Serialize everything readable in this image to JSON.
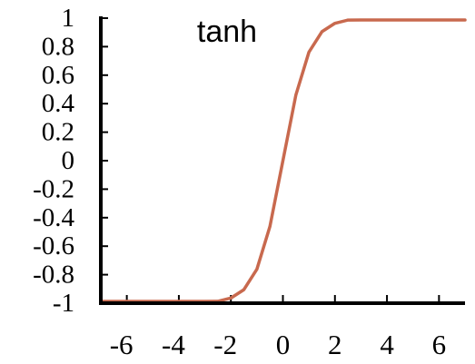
{
  "chart_data": {
    "type": "line",
    "title": "tanh",
    "xlabel": "",
    "ylabel": "",
    "xlim": [
      -7,
      7
    ],
    "ylim": [
      -1,
      1
    ],
    "x_ticks": [
      "-6",
      "-4",
      "-2",
      "0",
      "2",
      "4",
      "6"
    ],
    "y_ticks": [
      "1",
      "0.8",
      "0.6",
      "0.4",
      "0.2",
      "0",
      "-0.2",
      "-0.4",
      "-0.6",
      "-0.8",
      "-1"
    ],
    "grid": false,
    "series": [
      {
        "function": "tanh(x)",
        "color": "#c8694e",
        "x": [
          -7,
          -6,
          -5,
          -4,
          -3,
          -2.5,
          -2,
          -1.5,
          -1,
          -0.5,
          0,
          0.5,
          1,
          1.5,
          2,
          2.5,
          3,
          4,
          5,
          6,
          7
        ],
        "y": [
          -1.0,
          -1.0,
          -0.9999,
          -0.9993,
          -0.9951,
          -0.9866,
          -0.964,
          -0.9051,
          -0.7616,
          -0.4621,
          0,
          0.4621,
          0.7616,
          0.9051,
          0.964,
          0.9866,
          0.9951,
          0.9993,
          0.9999,
          1.0,
          1.0
        ]
      }
    ]
  }
}
